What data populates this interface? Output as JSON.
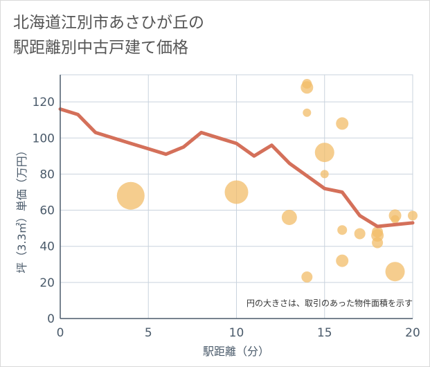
{
  "chart_data": {
    "type": "scatter",
    "title_lines": [
      "北海道江別市あさひが丘の",
      "駅距離別中古戸建て価格"
    ],
    "xlabel": "駅距離（分）",
    "ylabel": "坪（3.3㎡）単価（万円）",
    "xlim": [
      0,
      20
    ],
    "ylim": [
      0,
      135
    ],
    "x_ticks": [
      0,
      5,
      10,
      15,
      20
    ],
    "y_ticks": [
      0,
      20,
      40,
      60,
      80,
      100,
      120
    ],
    "grid": true,
    "note": "円の大きさは、取引のあった物件面積を示す",
    "colors": {
      "bubble": "#f2bc68",
      "line": "#d4705a",
      "grid": "#c9d3dd",
      "axis": "#4a5a6a"
    },
    "bubbles": [
      {
        "x": 4,
        "y": 68,
        "r": 20
      },
      {
        "x": 10,
        "y": 70,
        "r": 17
      },
      {
        "x": 13,
        "y": 56,
        "r": 11
      },
      {
        "x": 14,
        "y": 130,
        "r": 7
      },
      {
        "x": 14,
        "y": 128,
        "r": 9
      },
      {
        "x": 14,
        "y": 114,
        "r": 6
      },
      {
        "x": 14,
        "y": 23,
        "r": 8
      },
      {
        "x": 15,
        "y": 92,
        "r": 14
      },
      {
        "x": 15,
        "y": 80,
        "r": 6
      },
      {
        "x": 16,
        "y": 108,
        "r": 9
      },
      {
        "x": 16,
        "y": 49,
        "r": 7
      },
      {
        "x": 16,
        "y": 32,
        "r": 9
      },
      {
        "x": 17,
        "y": 47,
        "r": 8
      },
      {
        "x": 18,
        "y": 48,
        "r": 8
      },
      {
        "x": 18,
        "y": 46,
        "r": 9
      },
      {
        "x": 18,
        "y": 42,
        "r": 8
      },
      {
        "x": 19,
        "y": 57,
        "r": 9
      },
      {
        "x": 19,
        "y": 55,
        "r": 6
      },
      {
        "x": 19,
        "y": 26,
        "r": 14
      },
      {
        "x": 20,
        "y": 57,
        "r": 7
      }
    ],
    "trend": {
      "x": [
        0,
        1,
        2,
        3,
        4,
        5,
        6,
        7,
        8,
        9,
        10,
        11,
        12,
        13,
        14,
        15,
        16,
        17,
        18,
        19,
        20
      ],
      "y": [
        116,
        113,
        103,
        100,
        97,
        94,
        91,
        95,
        103,
        100,
        97,
        90,
        96,
        86,
        79,
        72,
        70,
        57,
        51,
        52,
        53
      ]
    }
  }
}
